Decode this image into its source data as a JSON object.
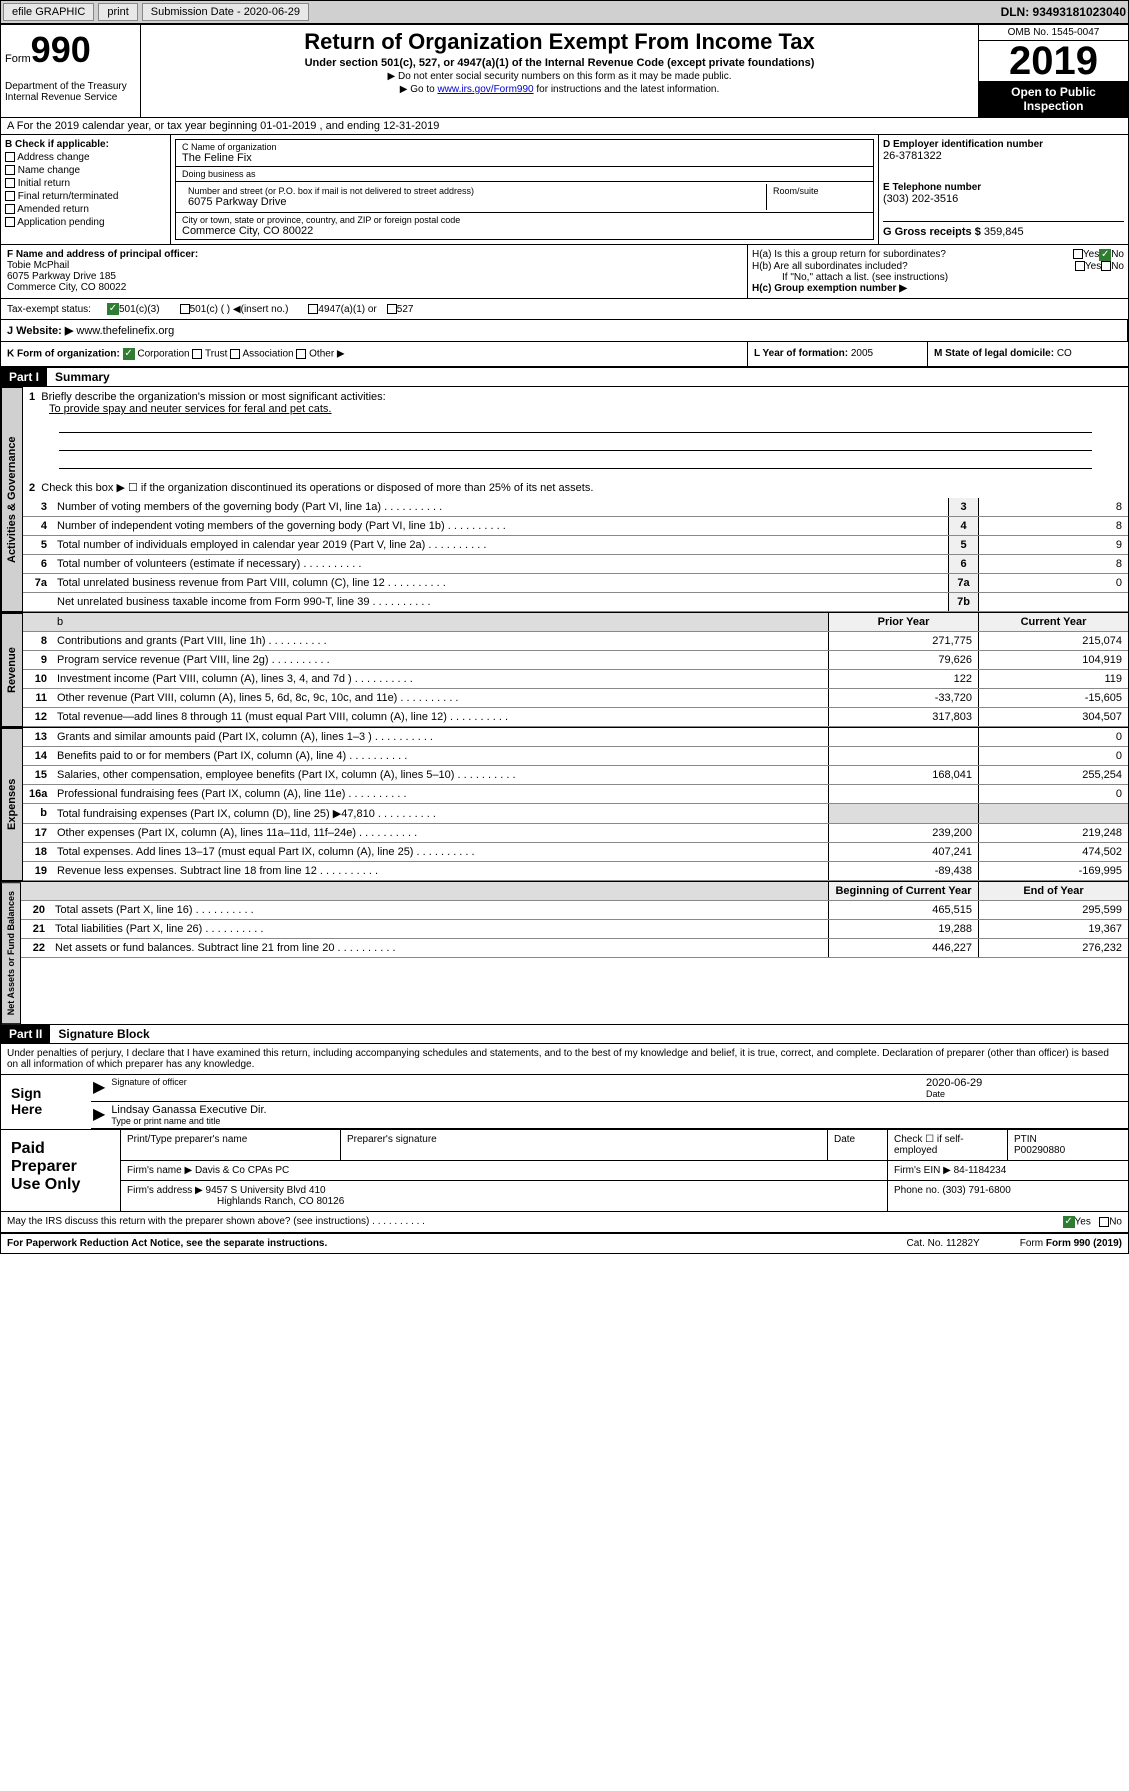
{
  "topbar": {
    "efile": "efile GRAPHIC",
    "print": "print",
    "subdate_label": "Submission Date - 2020-06-29",
    "dln": "DLN: 93493181023040"
  },
  "header": {
    "form_prefix": "Form",
    "form_num": "990",
    "dept": "Department of the Treasury\nInternal Revenue Service",
    "title": "Return of Organization Exempt From Income Tax",
    "subtitle": "Under section 501(c), 527, or 4947(a)(1) of the Internal Revenue Code (except private foundations)",
    "note1": "▶ Do not enter social security numbers on this form as it may be made public.",
    "note2_pre": "▶ Go to ",
    "note2_link": "www.irs.gov/Form990",
    "note2_post": " for instructions and the latest information.",
    "omb": "OMB No. 1545-0047",
    "year": "2019",
    "badge": "Open to Public Inspection"
  },
  "section_a": "A For the 2019 calendar year, or tax year beginning 01-01-2019   , and ending 12-31-2019",
  "box_b": {
    "label": "B Check if applicable:",
    "items": [
      "Address change",
      "Name change",
      "Initial return",
      "Final return/terminated",
      "Amended return",
      "Application pending"
    ]
  },
  "box_c": {
    "name_lbl": "C Name of organization",
    "name": "The Feline Fix",
    "dba_lbl": "Doing business as",
    "dba": "",
    "addr_lbl": "Number and street (or P.O. box if mail is not delivered to street address)",
    "addr": "6075 Parkway Drive",
    "room_lbl": "Room/suite",
    "city_lbl": "City or town, state or province, country, and ZIP or foreign postal code",
    "city": "Commerce City, CO  80022"
  },
  "box_d": {
    "ein_lbl": "D Employer identification number",
    "ein": "26-3781322",
    "tel_lbl": "E Telephone number",
    "tel": "(303) 202-3516",
    "gross_lbl": "G Gross receipts $ ",
    "gross": "359,845"
  },
  "box_f": {
    "lbl": "F Name and address of principal officer:",
    "name": "Tobie McPhail",
    "addr1": "6075 Parkway Drive 185",
    "addr2": "Commerce City, CO  80022"
  },
  "box_h": {
    "ha": "H(a)  Is this a group return for subordinates?",
    "hb": "H(b)  Are all subordinates included?",
    "hb_note": "If \"No,\" attach a list. (see instructions)",
    "hc": "H(c)  Group exemption number ▶"
  },
  "tax_status": {
    "lbl": "Tax-exempt status:",
    "opt1": "501(c)(3)",
    "opt2": "501(c) (  ) ◀(insert no.)",
    "opt3": "4947(a)(1) or",
    "opt4": "527"
  },
  "website": {
    "lbl": "J   Website: ▶",
    "val": "www.thefelinefix.org"
  },
  "kform": {
    "lbl": "K Form of organization:",
    "corp": "Corporation",
    "trust": "Trust",
    "assoc": "Association",
    "other": "Other ▶",
    "year_lbl": "L Year of formation: ",
    "year": "2005",
    "state_lbl": "M State of legal domicile: ",
    "state": "CO"
  },
  "part1": {
    "hdr": "Part I",
    "title": "Summary",
    "l1_lbl": "Briefly describe the organization's mission or most significant activities:",
    "l1_text": "To provide spay and neuter services for feral and pet cats.",
    "l2": "Check this box ▶ ☐  if the organization discontinued its operations or disposed of more than 25% of its net assets.",
    "tabs": {
      "gov": "Activities & Governance",
      "rev": "Revenue",
      "exp": "Expenses",
      "net": "Net Assets or Fund Balances"
    },
    "hdr_prior": "Prior Year",
    "hdr_current": "Current Year",
    "hdr_begin": "Beginning of Current Year",
    "hdr_end": "End of Year",
    "lines": [
      {
        "n": "3",
        "d": "Number of voting members of the governing body (Part VI, line 1a)",
        "b": "3",
        "v2": "8"
      },
      {
        "n": "4",
        "d": "Number of independent voting members of the governing body (Part VI, line 1b)",
        "b": "4",
        "v2": "8"
      },
      {
        "n": "5",
        "d": "Total number of individuals employed in calendar year 2019 (Part V, line 2a)",
        "b": "5",
        "v2": "9"
      },
      {
        "n": "6",
        "d": "Total number of volunteers (estimate if necessary)",
        "b": "6",
        "v2": "8"
      },
      {
        "n": "7a",
        "d": "Total unrelated business revenue from Part VIII, column (C), line 12",
        "b": "7a",
        "v2": "0"
      },
      {
        "n": "",
        "d": "Net unrelated business taxable income from Form 990-T, line 39",
        "b": "7b",
        "v2": ""
      }
    ],
    "rev_lines": [
      {
        "n": "8",
        "d": "Contributions and grants (Part VIII, line 1h)",
        "v1": "271,775",
        "v2": "215,074"
      },
      {
        "n": "9",
        "d": "Program service revenue (Part VIII, line 2g)",
        "v1": "79,626",
        "v2": "104,919"
      },
      {
        "n": "10",
        "d": "Investment income (Part VIII, column (A), lines 3, 4, and 7d )",
        "v1": "122",
        "v2": "119"
      },
      {
        "n": "11",
        "d": "Other revenue (Part VIII, column (A), lines 5, 6d, 8c, 9c, 10c, and 11e)",
        "v1": "-33,720",
        "v2": "-15,605"
      },
      {
        "n": "12",
        "d": "Total revenue—add lines 8 through 11 (must equal Part VIII, column (A), line 12)",
        "v1": "317,803",
        "v2": "304,507"
      }
    ],
    "exp_lines": [
      {
        "n": "13",
        "d": "Grants and similar amounts paid (Part IX, column (A), lines 1–3 )",
        "v1": "",
        "v2": "0"
      },
      {
        "n": "14",
        "d": "Benefits paid to or for members (Part IX, column (A), line 4)",
        "v1": "",
        "v2": "0"
      },
      {
        "n": "15",
        "d": "Salaries, other compensation, employee benefits (Part IX, column (A), lines 5–10)",
        "v1": "168,041",
        "v2": "255,254"
      },
      {
        "n": "16a",
        "d": "Professional fundraising fees (Part IX, column (A), line 11e)",
        "v1": "",
        "v2": "0"
      },
      {
        "n": "b",
        "d": "Total fundraising expenses (Part IX, column (D), line 25) ▶47,810",
        "v1": "__shade__",
        "v2": "__shade__"
      },
      {
        "n": "17",
        "d": "Other expenses (Part IX, column (A), lines 11a–11d, 11f–24e)",
        "v1": "239,200",
        "v2": "219,248"
      },
      {
        "n": "18",
        "d": "Total expenses. Add lines 13–17 (must equal Part IX, column (A), line 25)",
        "v1": "407,241",
        "v2": "474,502"
      },
      {
        "n": "19",
        "d": "Revenue less expenses. Subtract line 18 from line 12",
        "v1": "-89,438",
        "v2": "-169,995"
      }
    ],
    "net_lines": [
      {
        "n": "20",
        "d": "Total assets (Part X, line 16)",
        "v1": "465,515",
        "v2": "295,599"
      },
      {
        "n": "21",
        "d": "Total liabilities (Part X, line 26)",
        "v1": "19,288",
        "v2": "19,367"
      },
      {
        "n": "22",
        "d": "Net assets or fund balances. Subtract line 21 from line 20",
        "v1": "446,227",
        "v2": "276,232"
      }
    ]
  },
  "part2": {
    "hdr": "Part II",
    "title": "Signature Block",
    "decl": "Under penalties of perjury, I declare that I have examined this return, including accompanying schedules and statements, and to the best of my knowledge and belief, it is true, correct, and complete. Declaration of preparer (other than officer) is based on all information of which preparer has any knowledge.",
    "sign_here": "Sign Here",
    "sig_officer": "Signature of officer",
    "sig_date": "2020-06-29",
    "sig_date_lbl": "Date",
    "officer_name": "Lindsay Ganassa  Executive Dir.",
    "officer_name_lbl": "Type or print name and title",
    "paid": "Paid Preparer Use Only",
    "prep_name_lbl": "Print/Type preparer's name",
    "prep_sig_lbl": "Preparer's signature",
    "date_lbl": "Date",
    "check_lbl": "Check ☐ if self-employed",
    "ptin_lbl": "PTIN",
    "ptin": "P00290880",
    "firm_name_lbl": "Firm's name    ▶",
    "firm_name": "Davis & Co CPAs PC",
    "firm_ein_lbl": "Firm's EIN ▶",
    "firm_ein": "84-1184234",
    "firm_addr_lbl": "Firm's address ▶",
    "firm_addr1": "9457 S University Blvd 410",
    "firm_addr2": "Highlands Ranch, CO  80126",
    "phone_lbl": "Phone no. ",
    "phone": "(303) 791-6800",
    "discuss": "May the IRS discuss this return with the preparer shown above? (see instructions)",
    "yes": "Yes",
    "no": "No"
  },
  "footer": {
    "pra": "For Paperwork Reduction Act Notice, see the separate instructions.",
    "cat": "Cat. No. 11282Y",
    "form": "Form 990 (2019)"
  }
}
